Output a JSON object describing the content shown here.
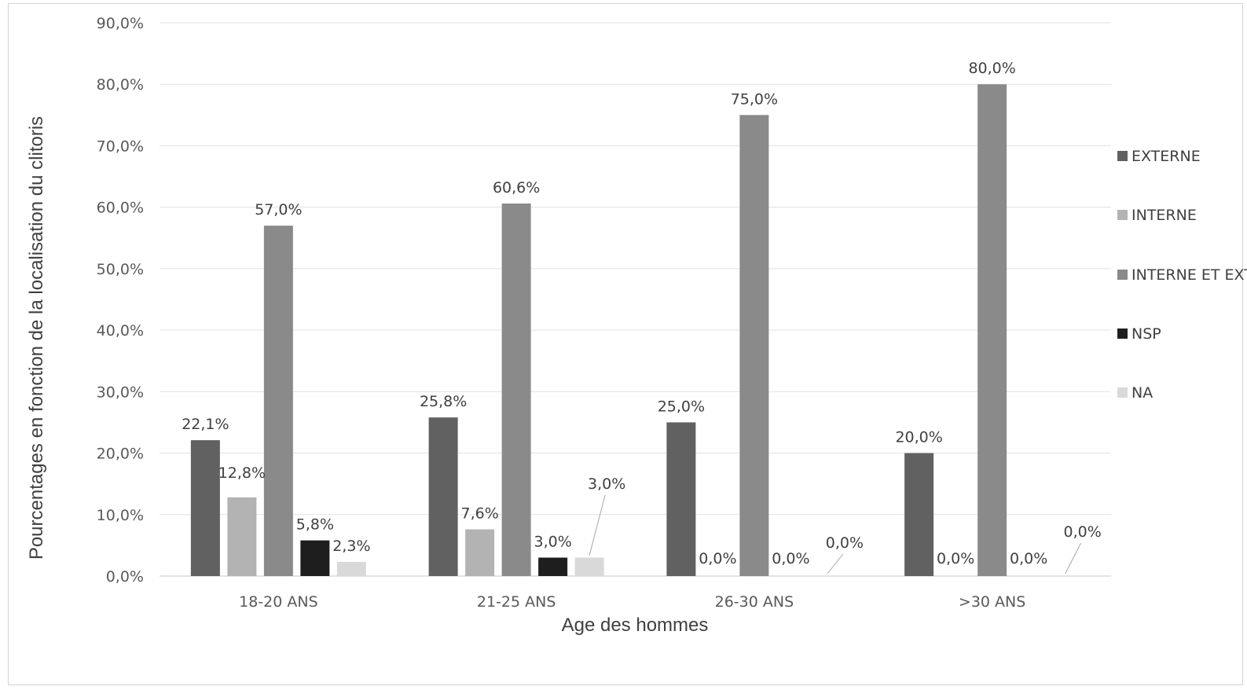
{
  "chart_data": {
    "type": "bar",
    "title": "",
    "xlabel": "Age des hommes",
    "ylabel": "Pourcentages en fonction de la localisation du clitoris",
    "ylim": [
      0,
      90
    ],
    "yticks": [
      "0,0%",
      "10,0%",
      "20,0%",
      "30,0%",
      "40,0%",
      "50,0%",
      "60,0%",
      "70,0%",
      "80,0%",
      "90,0%"
    ],
    "grid": true,
    "legend_position": "right",
    "categories": [
      "18-20 ANS",
      "21-25 ANS",
      "26-30 ANS",
      ">30 ANS"
    ],
    "series": [
      {
        "name": "EXTERNE",
        "color": "#616161",
        "values": [
          22.1,
          25.8,
          25.0,
          20.0
        ],
        "labels": [
          "22,1%",
          "25,8%",
          "25,0%",
          "20,0%"
        ]
      },
      {
        "name": "INTERNE",
        "color": "#b3b3b3",
        "values": [
          12.8,
          7.6,
          0.0,
          0.0
        ],
        "labels": [
          "12,8%",
          "7,6%",
          "0,0%",
          "0,0%"
        ]
      },
      {
        "name": "INTERNE ET EXTERNE",
        "color": "#8a8a8a",
        "values": [
          57.0,
          60.6,
          75.0,
          80.0
        ],
        "labels": [
          "57,0%",
          "60,6%",
          "75,0%",
          "80,0%"
        ]
      },
      {
        "name": "NSP",
        "color": "#1e1e1e",
        "values": [
          5.8,
          3.0,
          0.0,
          0.0
        ],
        "labels": [
          "5,8%",
          "3,0%",
          "0,0%",
          "0,0%"
        ]
      },
      {
        "name": "NA",
        "color": "#d9d9d9",
        "values": [
          2.3,
          3.0,
          0.0,
          0.0
        ],
        "labels": [
          "2,3%",
          "3,0%",
          "0,0%",
          "0,0%"
        ]
      }
    ]
  }
}
